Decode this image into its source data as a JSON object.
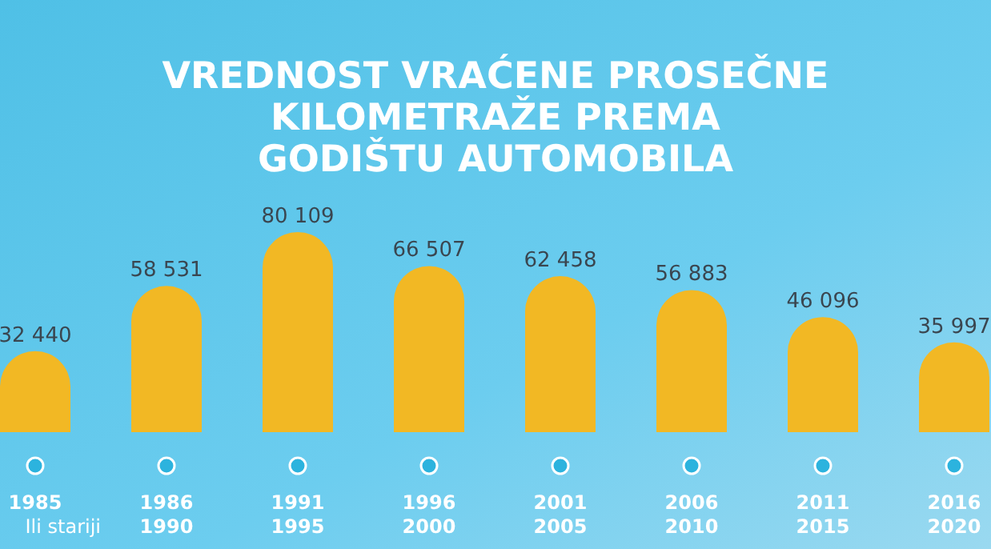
{
  "chart_data": {
    "type": "bar",
    "title": "VREDNOST VRAĆENE PROSEČNE\nKILOMETRAŽE PREMA\nGODIŠTU AUTOMOBILA",
    "categories": [
      "1985\nIli stariji",
      "1986\n1990",
      "1991\n1995",
      "1996\n2000",
      "2001\n2005",
      "2006\n2010",
      "2011\n2015",
      "2016\n2020"
    ],
    "values": [
      32440,
      58531,
      80109,
      66507,
      62458,
      56883,
      46096,
      35997
    ],
    "value_labels": [
      "32 440",
      "58 531",
      "80 109",
      "66 507",
      "62 458",
      "56 883",
      "46 096",
      "35 997"
    ],
    "color": "#f2b824"
  }
}
